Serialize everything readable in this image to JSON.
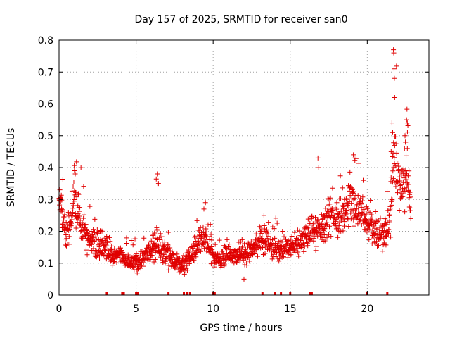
{
  "chart_data": {
    "type": "scatter",
    "title": "Day 157 of 2025, SRMTID for receiver san0",
    "xlabel": "GPS time / hours",
    "ylabel": "SRMTID / TECUs",
    "xlim": [
      0,
      24
    ],
    "ylim": [
      0,
      0.8
    ],
    "xticks": [
      0,
      5,
      10,
      15,
      20
    ],
    "yticks": [
      0,
      0.1,
      0.2,
      0.3,
      0.4,
      0.5,
      0.6,
      0.7,
      0.8
    ],
    "xtick_labels": [
      "0",
      "5",
      "10",
      "15",
      "20"
    ],
    "ytick_labels": [
      "0",
      "0.1",
      "0.2",
      "0.3",
      "0.4",
      "0.5",
      "0.6",
      "0.7",
      "0.8"
    ],
    "grid": true,
    "marker": "+",
    "color": "#e00000",
    "zero_markers_x": [
      3.1,
      4.1,
      4.2,
      5.0,
      5.1,
      7.1,
      8.1,
      8.3,
      8.5,
      10.0,
      10.1,
      13.2,
      14.0,
      14.4,
      15.0,
      16.3,
      16.4,
      20.0,
      21.3
    ],
    "envelope": [
      [
        0.0,
        0.28,
        0.07
      ],
      [
        0.5,
        0.2,
        0.06
      ],
      [
        1.0,
        0.3,
        0.08
      ],
      [
        1.5,
        0.22,
        0.06
      ],
      [
        2.0,
        0.18,
        0.05
      ],
      [
        2.5,
        0.15,
        0.05
      ],
      [
        3.0,
        0.14,
        0.04
      ],
      [
        3.5,
        0.12,
        0.03
      ],
      [
        4.0,
        0.12,
        0.03
      ],
      [
        4.5,
        0.1,
        0.025
      ],
      [
        5.0,
        0.1,
        0.03
      ],
      [
        5.5,
        0.12,
        0.03
      ],
      [
        6.0,
        0.14,
        0.04
      ],
      [
        6.3,
        0.18,
        0.08
      ],
      [
        6.5,
        0.14,
        0.04
      ],
      [
        7.0,
        0.13,
        0.04
      ],
      [
        7.5,
        0.1,
        0.03
      ],
      [
        8.0,
        0.09,
        0.03
      ],
      [
        8.5,
        0.12,
        0.03
      ],
      [
        9.0,
        0.16,
        0.05
      ],
      [
        9.5,
        0.18,
        0.05
      ],
      [
        10.0,
        0.12,
        0.03
      ],
      [
        10.5,
        0.11,
        0.03
      ],
      [
        11.0,
        0.13,
        0.03
      ],
      [
        11.5,
        0.12,
        0.03
      ],
      [
        12.0,
        0.12,
        0.03
      ],
      [
        12.5,
        0.14,
        0.04
      ],
      [
        13.0,
        0.17,
        0.04
      ],
      [
        13.5,
        0.18,
        0.05
      ],
      [
        14.0,
        0.14,
        0.04
      ],
      [
        14.5,
        0.14,
        0.04
      ],
      [
        15.0,
        0.15,
        0.04
      ],
      [
        15.5,
        0.16,
        0.04
      ],
      [
        16.0,
        0.18,
        0.05
      ],
      [
        16.5,
        0.2,
        0.05
      ],
      [
        17.0,
        0.2,
        0.05
      ],
      [
        17.5,
        0.25,
        0.06
      ],
      [
        18.0,
        0.22,
        0.05
      ],
      [
        18.5,
        0.25,
        0.06
      ],
      [
        19.0,
        0.3,
        0.07
      ],
      [
        19.5,
        0.27,
        0.06
      ],
      [
        20.0,
        0.22,
        0.05
      ],
      [
        20.5,
        0.2,
        0.05
      ],
      [
        21.0,
        0.18,
        0.05
      ],
      [
        21.5,
        0.25,
        0.08
      ],
      [
        21.8,
        0.45,
        0.15
      ],
      [
        22.0,
        0.35,
        0.08
      ],
      [
        22.3,
        0.33,
        0.08
      ],
      [
        22.6,
        0.4,
        0.1
      ],
      [
        22.8,
        0.27,
        0.06
      ]
    ],
    "spikes": [
      [
        21.7,
        0.77
      ],
      [
        21.72,
        0.76
      ],
      [
        21.74,
        0.71
      ],
      [
        21.76,
        0.68
      ],
      [
        21.78,
        0.62
      ],
      [
        21.6,
        0.54
      ],
      [
        21.65,
        0.51
      ],
      [
        21.55,
        0.45
      ],
      [
        22.55,
        0.55
      ],
      [
        22.6,
        0.54
      ],
      [
        22.5,
        0.48
      ],
      [
        22.45,
        0.5
      ],
      [
        22.6,
        0.46
      ],
      [
        19.1,
        0.44
      ],
      [
        19.15,
        0.43
      ],
      [
        16.8,
        0.43
      ],
      [
        16.85,
        0.4
      ],
      [
        6.4,
        0.38
      ],
      [
        6.45,
        0.35
      ],
      [
        1.0,
        0.39
      ],
      [
        1.05,
        0.38
      ],
      [
        0.05,
        0.33
      ],
      [
        9.5,
        0.29
      ],
      [
        9.4,
        0.27
      ],
      [
        12.0,
        0.05
      ]
    ]
  }
}
